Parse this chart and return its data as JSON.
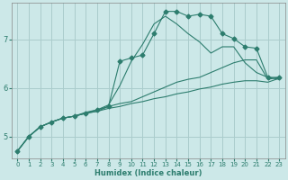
{
  "xlabel": "Humidex (Indice chaleur)",
  "ylabel": "",
  "bg_color": "#cce8e8",
  "grid_color": "#aacccc",
  "line_color": "#2d7d6e",
  "xlim": [
    -0.5,
    23.5
  ],
  "ylim": [
    4.55,
    7.75
  ],
  "yticks": [
    5,
    6,
    7
  ],
  "xticks": [
    0,
    1,
    2,
    3,
    4,
    5,
    6,
    7,
    8,
    9,
    10,
    11,
    12,
    13,
    14,
    15,
    16,
    17,
    18,
    19,
    20,
    21,
    22,
    23
  ],
  "lines": [
    {
      "x": [
        0,
        1,
        2,
        3,
        4,
        5,
        6,
        7,
        8,
        9,
        10,
        11,
        12,
        13,
        14,
        15,
        16,
        17,
        18,
        19,
        20,
        21,
        22,
        23
      ],
      "y": [
        4.7,
        5.0,
        5.2,
        5.3,
        5.38,
        5.42,
        5.48,
        5.55,
        5.62,
        6.55,
        6.62,
        6.68,
        7.12,
        7.58,
        7.58,
        7.48,
        7.52,
        7.48,
        7.12,
        7.02,
        6.85,
        6.82,
        6.22,
        6.22
      ],
      "marker": "D",
      "markersize": 2.5,
      "linestyle": "-"
    },
    {
      "x": [
        0,
        1,
        2,
        3,
        4,
        5,
        6,
        7,
        8,
        9,
        10,
        11,
        12,
        13,
        14,
        15,
        16,
        17,
        18,
        19,
        20,
        21,
        22,
        23
      ],
      "y": [
        4.7,
        5.0,
        5.2,
        5.3,
        5.38,
        5.42,
        5.5,
        5.55,
        5.65,
        6.05,
        6.55,
        6.9,
        7.32,
        7.48,
        7.32,
        7.12,
        6.95,
        6.72,
        6.85,
        6.85,
        6.52,
        6.32,
        6.22,
        6.18
      ],
      "marker": null,
      "markersize": 0,
      "linestyle": "-"
    },
    {
      "x": [
        0,
        1,
        2,
        3,
        4,
        5,
        6,
        7,
        8,
        9,
        10,
        11,
        12,
        13,
        14,
        15,
        16,
        17,
        18,
        19,
        20,
        21,
        22,
        23
      ],
      "y": [
        4.7,
        5.0,
        5.2,
        5.3,
        5.38,
        5.42,
        5.48,
        5.52,
        5.62,
        5.68,
        5.72,
        5.82,
        5.92,
        6.02,
        6.12,
        6.18,
        6.22,
        6.32,
        6.42,
        6.52,
        6.58,
        6.58,
        6.18,
        6.22
      ],
      "marker": null,
      "markersize": 0,
      "linestyle": "-"
    },
    {
      "x": [
        0,
        1,
        2,
        3,
        4,
        5,
        6,
        7,
        8,
        9,
        10,
        11,
        12,
        13,
        14,
        15,
        16,
        17,
        18,
        19,
        20,
        21,
        22,
        23
      ],
      "y": [
        4.7,
        5.0,
        5.2,
        5.3,
        5.38,
        5.42,
        5.48,
        5.52,
        5.58,
        5.62,
        5.68,
        5.72,
        5.78,
        5.82,
        5.88,
        5.92,
        5.98,
        6.02,
        6.08,
        6.12,
        6.15,
        6.15,
        6.12,
        6.2
      ],
      "marker": null,
      "markersize": 0,
      "linestyle": "-"
    }
  ],
  "xlabel_fontsize": 6.0,
  "tick_fontsize": 5.0
}
